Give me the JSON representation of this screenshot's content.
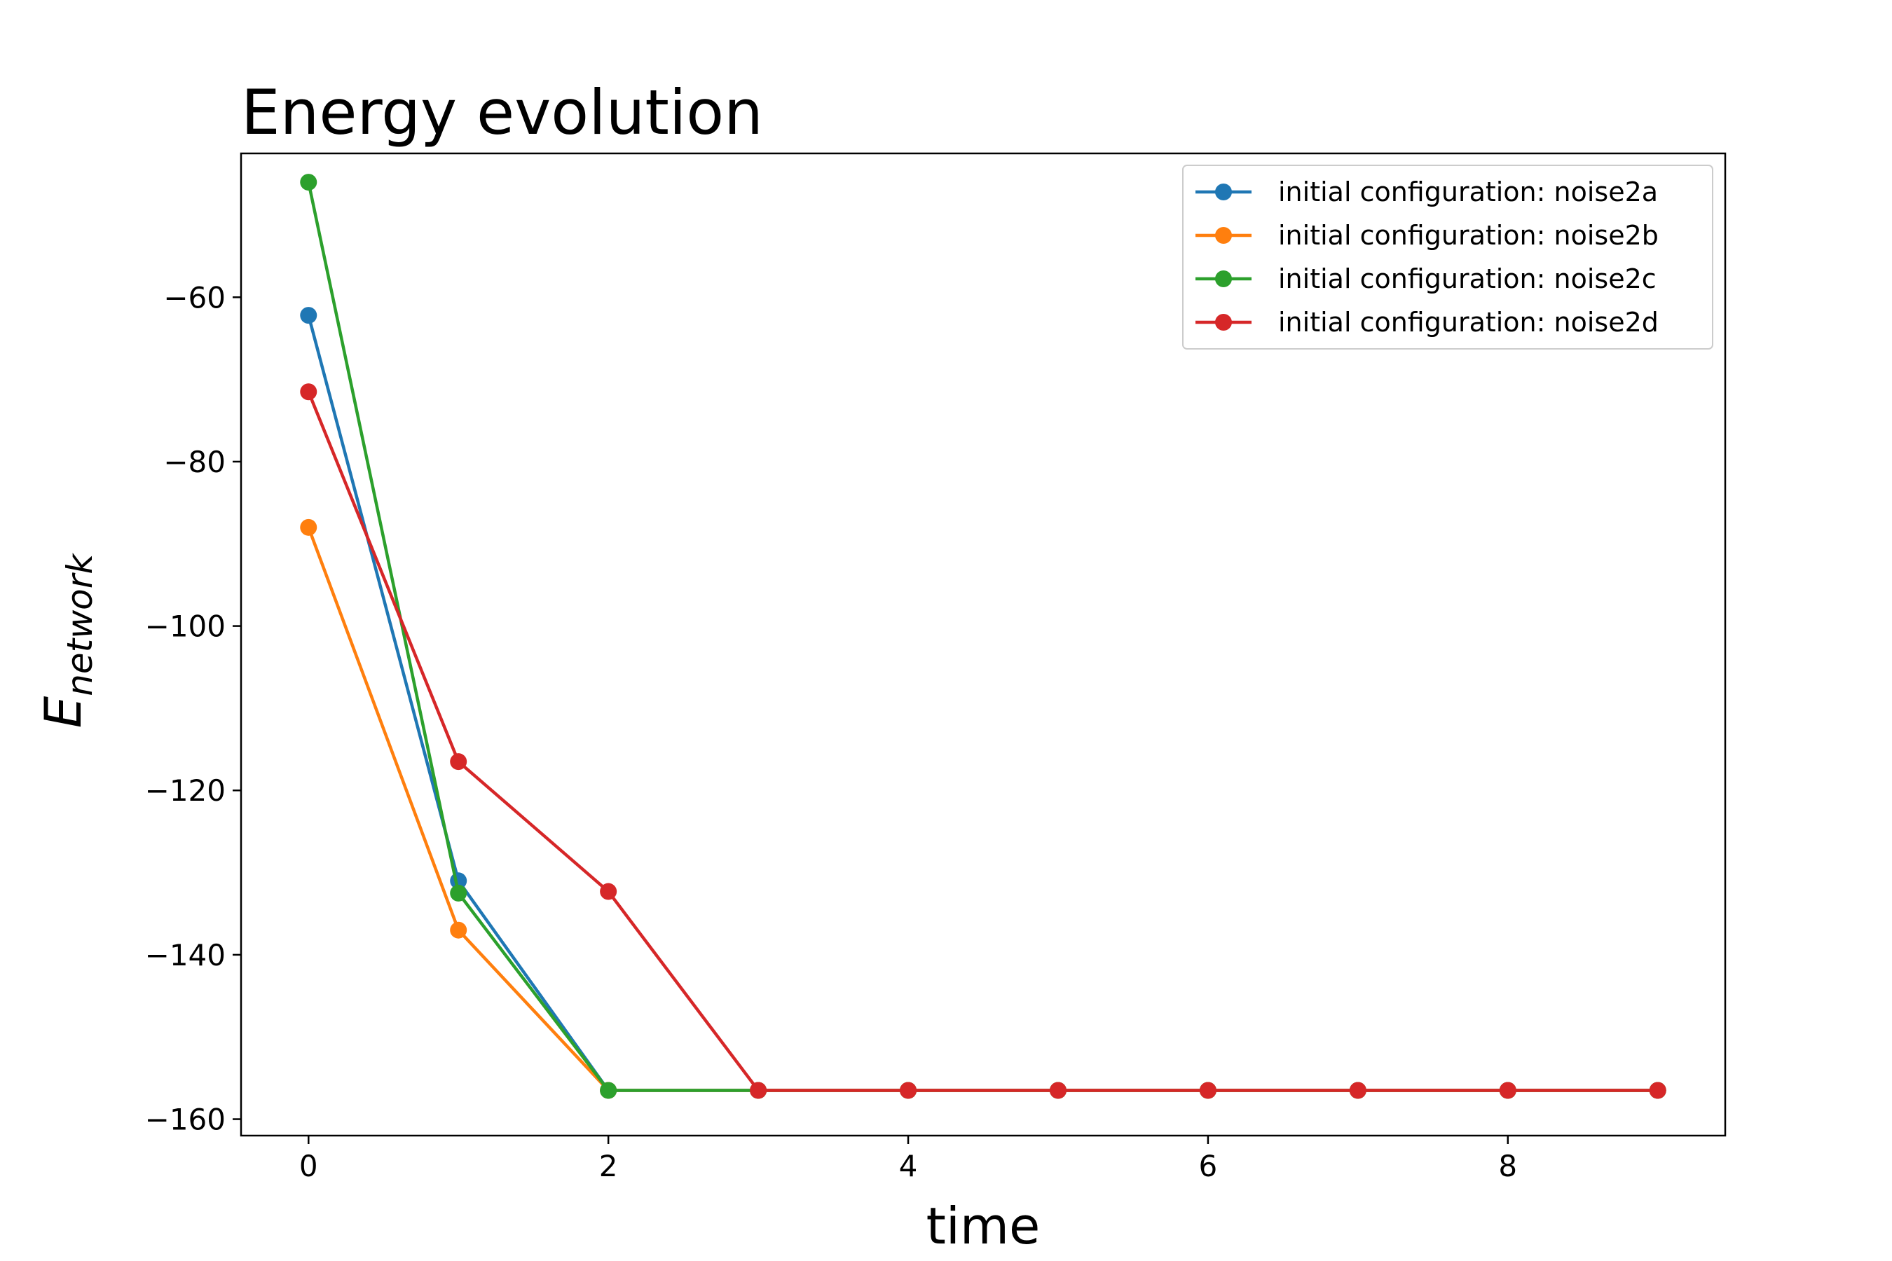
{
  "chart_data": {
    "type": "line",
    "title": "Energy evolution",
    "xlabel": "time",
    "ylabel": {
      "main": "E",
      "sub": "network"
    },
    "xlim": [
      -0.45,
      9.45
    ],
    "ylim": [
      -162,
      -42.5
    ],
    "xticks": [
      0,
      2,
      4,
      6,
      8
    ],
    "yticks": [
      -60,
      -80,
      -100,
      -120,
      -140,
      -160
    ],
    "grid": false,
    "legend_position": "top-right",
    "x": [
      0,
      1,
      2,
      3,
      4,
      5,
      6,
      7,
      8,
      9
    ],
    "series": [
      {
        "name": "initial configuration: noise2a",
        "color": "#1f77b4",
        "marker": "circle",
        "values": [
          -62.2,
          -131,
          -156.5,
          -156.5,
          -156.5,
          -156.5,
          -156.5,
          -156.5,
          -156.5,
          -156.5
        ]
      },
      {
        "name": "initial configuration: noise2b",
        "color": "#ff7f0e",
        "marker": "circle",
        "values": [
          -88,
          -137,
          -156.5,
          -156.5,
          -156.5,
          -156.5,
          -156.5,
          -156.5,
          -156.5,
          -156.5
        ]
      },
      {
        "name": "initial configuration: noise2c",
        "color": "#2ca02c",
        "marker": "circle",
        "values": [
          -46,
          -132.5,
          -156.5,
          -156.5,
          -156.5,
          -156.5,
          -156.5,
          -156.5,
          -156.5,
          -156.5
        ]
      },
      {
        "name": "initial configuration: noise2d",
        "color": "#d62728",
        "marker": "circle",
        "values": [
          -71.5,
          -116.5,
          -132.3,
          -156.5,
          -156.5,
          -156.5,
          -156.5,
          -156.5,
          -156.5,
          -156.5
        ]
      }
    ]
  }
}
